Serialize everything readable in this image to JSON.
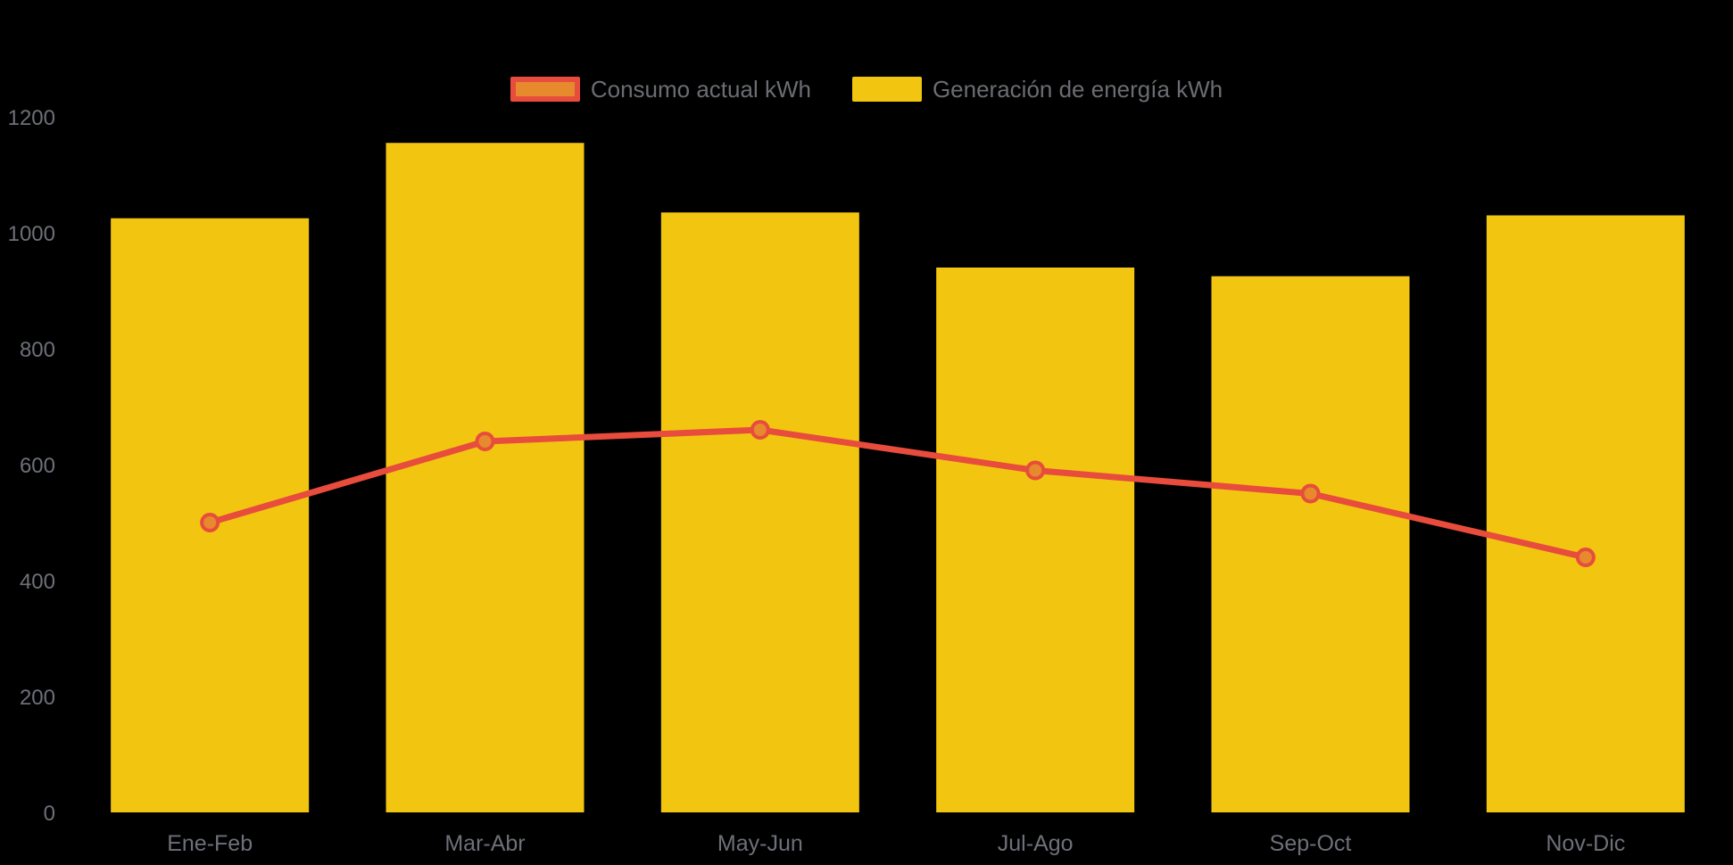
{
  "page": {
    "background": "#000000"
  },
  "legend": {
    "items": [
      {
        "label": "Consumo actual kWh",
        "swatch_fill": "#E78A2E",
        "swatch_border": "#E74C3C",
        "series_type": "line"
      },
      {
        "label": "Generación de energía kWh",
        "swatch_fill": "#F2C511",
        "swatch_border": "#F2C511",
        "series_type": "bar"
      }
    ],
    "text_color": "#6b6d72"
  },
  "chart_data": {
    "type": "bar",
    "subtype": "bar-line-combo",
    "title": "",
    "xlabel": "",
    "ylabel": "",
    "categories": [
      "Ene-Feb",
      "Mar-Abr",
      "May-Jun",
      "Jul-Ago",
      "Sep-Oct",
      "Nov-Dic"
    ],
    "series": [
      {
        "name": "Generación de energía kWh",
        "type": "bar",
        "color": "#F2C511",
        "values": [
          1025,
          1155,
          1035,
          940,
          925,
          1030
        ]
      },
      {
        "name": "Consumo actual kWh",
        "type": "line",
        "color": "#E74C3C",
        "marker_fill": "#E78A2E",
        "values": [
          500,
          640,
          660,
          590,
          550,
          440
        ]
      }
    ],
    "yticks": [
      0,
      200,
      400,
      600,
      800,
      1000,
      1200
    ],
    "ylim": [
      0,
      1200
    ],
    "grid": false,
    "legend_position": "top-center",
    "axis_text_color": "#6E7079"
  }
}
